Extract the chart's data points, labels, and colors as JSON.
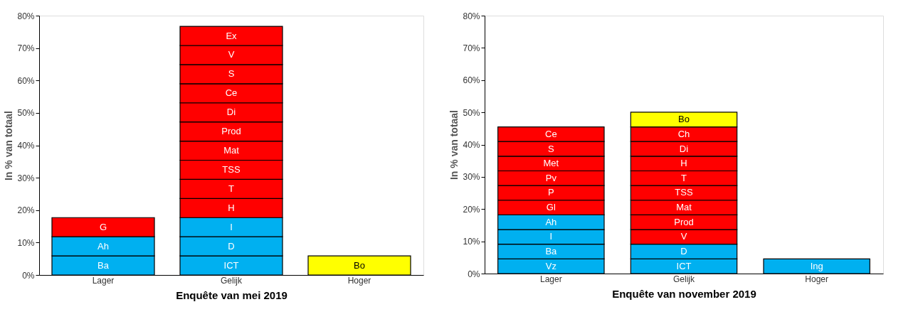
{
  "chart_data": [
    {
      "type": "bar",
      "stacked": true,
      "xlabel": "Enquête van mei 2019",
      "ylabel": "In % van totaal",
      "categories": [
        "Lager",
        "Gelijk",
        "Hoger"
      ],
      "ylim": [
        0,
        80
      ],
      "yticks": [
        {
          "value": 0,
          "label": "0%"
        },
        {
          "value": 10,
          "label": "10%"
        },
        {
          "value": 20,
          "label": "20%"
        },
        {
          "value": 30,
          "label": "30%"
        },
        {
          "value": 40,
          "label": "40%"
        },
        {
          "value": 50,
          "label": "50%"
        },
        {
          "value": 60,
          "label": "60%"
        },
        {
          "value": 70,
          "label": "70%"
        },
        {
          "value": 80,
          "label": "80%"
        }
      ],
      "series": [
        {
          "values": [
            5.9,
            5.9,
            5.9
          ],
          "colors": [
            "#00b0f0",
            "#00b0f0",
            "#ffff00"
          ],
          "value_labels": [
            "Ba",
            "ICT",
            "Bo"
          ]
        },
        {
          "values": [
            5.9,
            5.9,
            null
          ],
          "colors": [
            "#00b0f0",
            "#00b0f0",
            null
          ],
          "value_labels": [
            "Ah",
            "D",
            null
          ]
        },
        {
          "values": [
            5.9,
            5.9,
            null
          ],
          "colors": [
            "#ff0000",
            "#00b0f0",
            null
          ],
          "value_labels": [
            "G",
            "I",
            null
          ]
        },
        {
          "values": [
            null,
            5.9,
            null
          ],
          "colors": [
            null,
            "#ff0000",
            null
          ],
          "value_labels": [
            null,
            "H",
            null
          ]
        },
        {
          "values": [
            null,
            5.9,
            null
          ],
          "colors": [
            null,
            "#ff0000",
            null
          ],
          "value_labels": [
            null,
            "T",
            null
          ]
        },
        {
          "values": [
            null,
            5.9,
            null
          ],
          "colors": [
            null,
            "#ff0000",
            null
          ],
          "value_labels": [
            null,
            "TSS",
            null
          ]
        },
        {
          "values": [
            null,
            5.9,
            null
          ],
          "colors": [
            null,
            "#ff0000",
            null
          ],
          "value_labels": [
            null,
            "Mat",
            null
          ]
        },
        {
          "values": [
            null,
            5.9,
            null
          ],
          "colors": [
            null,
            "#ff0000",
            null
          ],
          "value_labels": [
            null,
            "Prod",
            null
          ]
        },
        {
          "values": [
            null,
            5.9,
            null
          ],
          "colors": [
            null,
            "#ff0000",
            null
          ],
          "value_labels": [
            null,
            "Di",
            null
          ]
        },
        {
          "values": [
            null,
            5.9,
            null
          ],
          "colors": [
            null,
            "#ff0000",
            null
          ],
          "value_labels": [
            null,
            "Ce",
            null
          ]
        },
        {
          "values": [
            null,
            5.9,
            null
          ],
          "colors": [
            null,
            "#ff0000",
            null
          ],
          "value_labels": [
            null,
            "S",
            null
          ]
        },
        {
          "values": [
            null,
            5.9,
            null
          ],
          "colors": [
            null,
            "#ff0000",
            null
          ],
          "value_labels": [
            null,
            "V",
            null
          ]
        },
        {
          "values": [
            null,
            5.9,
            null
          ],
          "colors": [
            null,
            "#ff0000",
            null
          ],
          "value_labels": [
            null,
            "Ex",
            null
          ]
        }
      ]
    },
    {
      "type": "bar",
      "stacked": true,
      "xlabel": "Enquête van november 2019",
      "ylabel": "In % van totaal",
      "categories": [
        "Lager",
        "Gelijk",
        "Hoger"
      ],
      "ylim": [
        0,
        80
      ],
      "yticks": [
        {
          "value": 0,
          "label": "0%"
        },
        {
          "value": 10,
          "label": "10%"
        },
        {
          "value": 20,
          "label": "20%"
        },
        {
          "value": 30,
          "label": "30%"
        },
        {
          "value": 40,
          "label": "40%"
        },
        {
          "value": 50,
          "label": "50%"
        },
        {
          "value": 60,
          "label": "60%"
        },
        {
          "value": 70,
          "label": "70%"
        },
        {
          "value": 80,
          "label": "80%"
        }
      ],
      "series": [
        {
          "values": [
            4.55,
            4.55,
            4.55
          ],
          "colors": [
            "#00b0f0",
            "#00b0f0",
            "#00b0f0"
          ],
          "value_labels": [
            "Vz",
            "ICT",
            "Ing"
          ]
        },
        {
          "values": [
            4.55,
            4.55,
            null
          ],
          "colors": [
            "#00b0f0",
            "#00b0f0",
            null
          ],
          "value_labels": [
            "Ba",
            "D",
            null
          ]
        },
        {
          "values": [
            4.55,
            4.55,
            null
          ],
          "colors": [
            "#00b0f0",
            "#ff0000",
            null
          ],
          "value_labels": [
            "I",
            "V",
            null
          ]
        },
        {
          "values": [
            4.55,
            4.55,
            null
          ],
          "colors": [
            "#00b0f0",
            "#ff0000",
            null
          ],
          "value_labels": [
            "Ah",
            "Prod",
            null
          ]
        },
        {
          "values": [
            4.55,
            4.55,
            null
          ],
          "colors": [
            "#ff0000",
            "#ff0000",
            null
          ],
          "value_labels": [
            "Gl",
            "Mat",
            null
          ]
        },
        {
          "values": [
            4.55,
            4.55,
            null
          ],
          "colors": [
            "#ff0000",
            "#ff0000",
            null
          ],
          "value_labels": [
            "P",
            "TSS",
            null
          ]
        },
        {
          "values": [
            4.55,
            4.55,
            null
          ],
          "colors": [
            "#ff0000",
            "#ff0000",
            null
          ],
          "value_labels": [
            "Pv",
            "T",
            null
          ]
        },
        {
          "values": [
            4.55,
            4.55,
            null
          ],
          "colors": [
            "#ff0000",
            "#ff0000",
            null
          ],
          "value_labels": [
            "Met",
            "H",
            null
          ]
        },
        {
          "values": [
            4.55,
            4.55,
            null
          ],
          "colors": [
            "#ff0000",
            "#ff0000",
            null
          ],
          "value_labels": [
            "S",
            "Di",
            null
          ]
        },
        {
          "values": [
            4.55,
            4.55,
            null
          ],
          "colors": [
            "#ff0000",
            "#ff0000",
            null
          ],
          "value_labels": [
            "Ce",
            "Ch",
            null
          ]
        },
        {
          "values": [
            null,
            4.55,
            null
          ],
          "colors": [
            null,
            "#ffff00",
            null
          ],
          "value_labels": [
            null,
            "Bo",
            null
          ]
        }
      ]
    }
  ]
}
